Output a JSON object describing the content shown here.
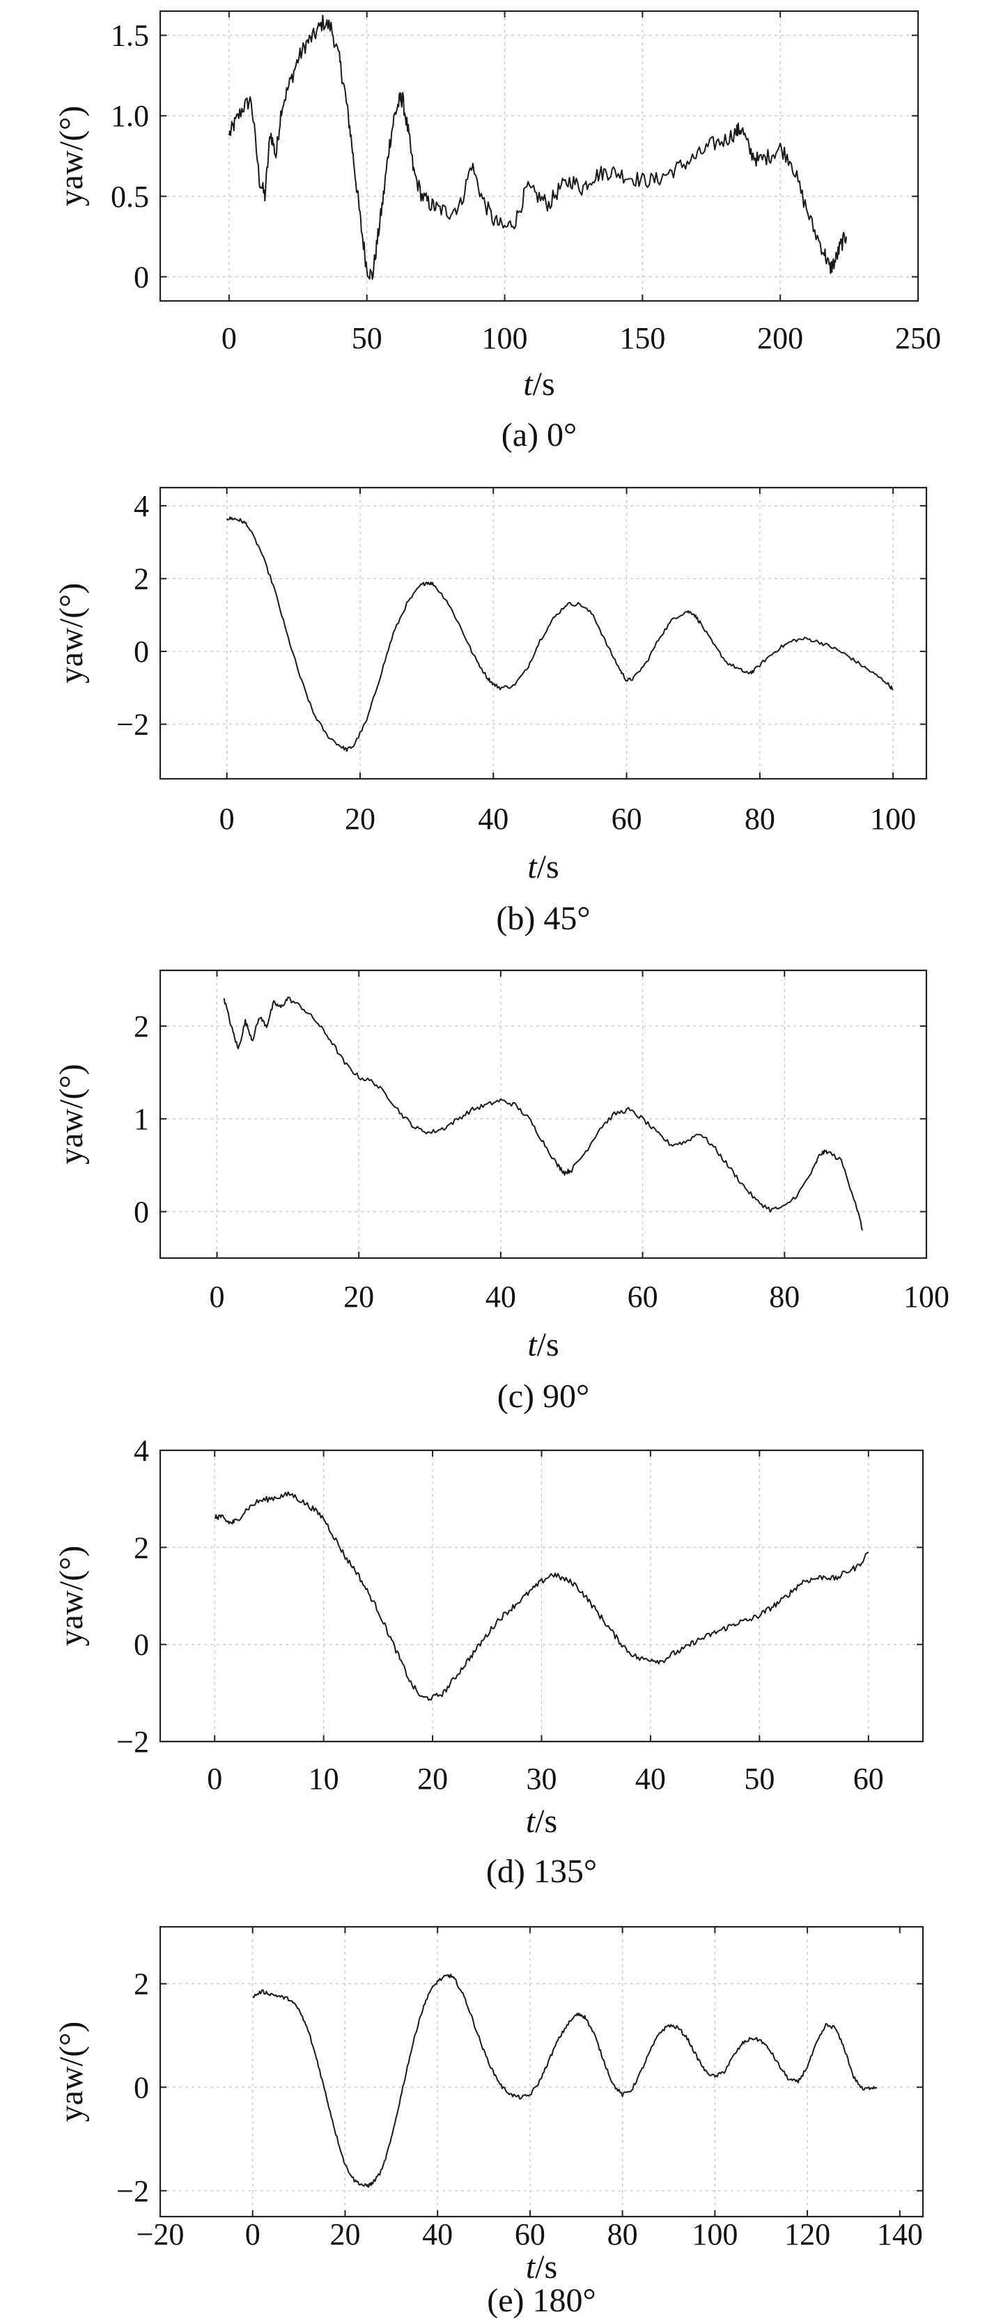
{
  "chart_data": [
    {
      "type": "line",
      "caption": "(a) 0°",
      "xlabel_italic": "t",
      "xlabel_unit": "/s",
      "ylabel": "yaw/(°)",
      "xlim": [
        -25,
        250
      ],
      "ylim": [
        -0.15,
        1.65
      ],
      "xticks": [
        0,
        50,
        100,
        150,
        200,
        250
      ],
      "yticks": [
        0,
        0.5,
        1.0,
        1.5
      ],
      "ytick_labels": [
        "0",
        "0.5",
        "1.0",
        "1.5"
      ],
      "xgrid": [
        0,
        50,
        100,
        150,
        200,
        250
      ],
      "ygrid": [
        0,
        0.5,
        1.0,
        1.5
      ],
      "grid": true,
      "noise": 0.05,
      "series": [
        {
          "x": [
            0,
            2,
            5,
            8,
            11,
            13,
            15,
            17,
            19,
            22,
            25,
            28,
            31,
            34,
            37,
            40,
            42,
            44,
            46,
            48,
            50,
            52,
            54,
            56,
            58,
            60,
            62,
            63,
            65,
            67,
            70,
            73,
            76,
            80,
            84,
            88,
            92,
            96,
            100,
            104,
            108,
            112,
            116,
            120,
            124,
            128,
            132,
            136,
            140,
            145,
            150,
            155,
            160,
            165,
            170,
            175,
            180,
            184,
            186,
            189,
            192,
            196,
            200,
            204,
            208,
            212,
            216,
            218,
            220,
            222,
            224
          ],
          "y": [
            0.88,
            0.95,
            1.05,
            1.1,
            0.6,
            0.5,
            0.9,
            0.75,
            1.05,
            1.2,
            1.35,
            1.45,
            1.5,
            1.58,
            1.55,
            1.35,
            1.15,
            0.9,
            0.6,
            0.3,
            0.05,
            0.0,
            0.25,
            0.5,
            0.8,
            1.0,
            1.1,
            1.1,
            0.9,
            0.65,
            0.5,
            0.45,
            0.42,
            0.4,
            0.45,
            0.7,
            0.48,
            0.35,
            0.3,
            0.35,
            0.55,
            0.5,
            0.45,
            0.55,
            0.6,
            0.55,
            0.62,
            0.65,
            0.65,
            0.62,
            0.6,
            0.6,
            0.65,
            0.7,
            0.75,
            0.82,
            0.85,
            0.9,
            0.92,
            0.78,
            0.72,
            0.75,
            0.8,
            0.72,
            0.5,
            0.3,
            0.15,
            0.05,
            0.1,
            0.2,
            0.25
          ]
        }
      ]
    },
    {
      "type": "line",
      "caption": "(b) 45°",
      "xlabel_italic": "t",
      "xlabel_unit": "/s",
      "ylabel": "yaw/(°)",
      "xlim": [
        -10,
        105
      ],
      "ylim": [
        -3.5,
        4.5
      ],
      "xticks": [
        0,
        20,
        40,
        60,
        80,
        100
      ],
      "yticks": [
        -2,
        0,
        2,
        4
      ],
      "ytick_labels": [
        "−2",
        "0",
        "2",
        "4"
      ],
      "xgrid": [
        0,
        20,
        40,
        60,
        80,
        100
      ],
      "ygrid": [
        -2,
        0,
        2,
        4
      ],
      "grid": true,
      "noise": 0.05,
      "series": [
        {
          "x": [
            0,
            1,
            2,
            3,
            5,
            7,
            9,
            11,
            13,
            15,
            17,
            18,
            19,
            21,
            23,
            25,
            27,
            29,
            30,
            31,
            33,
            35,
            37,
            39,
            40,
            41,
            43,
            45,
            47,
            49,
            51,
            53,
            55,
            57,
            59,
            60,
            61,
            63,
            65,
            67,
            69,
            70,
            71,
            73,
            75,
            77,
            78,
            79,
            81,
            83,
            85,
            87,
            89,
            91,
            93,
            95,
            97,
            99,
            100
          ],
          "y": [
            3.65,
            3.65,
            3.6,
            3.5,
            2.8,
            1.8,
            0.5,
            -0.7,
            -1.7,
            -2.3,
            -2.6,
            -2.7,
            -2.6,
            -1.9,
            -0.7,
            0.5,
            1.3,
            1.8,
            1.9,
            1.85,
            1.4,
            0.7,
            -0.1,
            -0.7,
            -0.9,
            -1.0,
            -0.95,
            -0.5,
            0.3,
            0.9,
            1.3,
            1.3,
            1.0,
            0.2,
            -0.5,
            -0.8,
            -0.75,
            -0.3,
            0.4,
            0.9,
            1.1,
            1.05,
            0.8,
            0.2,
            -0.3,
            -0.5,
            -0.6,
            -0.55,
            -0.2,
            0.1,
            0.3,
            0.35,
            0.25,
            0.1,
            -0.1,
            -0.35,
            -0.6,
            -0.85,
            -1.05
          ]
        }
      ]
    },
    {
      "type": "line",
      "caption": "(c) 90°",
      "xlabel_italic": "t",
      "xlabel_unit": "/s",
      "ylabel": "yaw/(°)",
      "xlim": [
        -8,
        100
      ],
      "ylim": [
        -0.5,
        2.6
      ],
      "xticks": [
        0,
        20,
        40,
        60,
        80,
        100
      ],
      "yticks": [
        0,
        1,
        2
      ],
      "ytick_labels": [
        "0",
        "1",
        "2"
      ],
      "xgrid": [
        0,
        20,
        40,
        60,
        80,
        100
      ],
      "ygrid": [
        0,
        1,
        2
      ],
      "grid": true,
      "noise": 0.025,
      "series": [
        {
          "x": [
            1,
            2,
            3,
            4,
            5,
            6,
            7,
            8,
            9,
            10,
            12,
            14,
            16,
            18,
            20,
            22,
            24,
            26,
            28,
            30,
            32,
            34,
            36,
            38,
            40,
            42,
            44,
            46,
            48,
            49,
            50,
            52,
            54,
            56,
            58,
            60,
            62,
            64,
            66,
            68,
            70,
            72,
            74,
            76,
            78,
            80,
            82,
            84,
            85,
            86,
            88,
            90,
            91
          ],
          "y": [
            2.3,
            2.0,
            1.75,
            2.05,
            1.85,
            2.1,
            2.0,
            2.25,
            2.2,
            2.3,
            2.2,
            2.05,
            1.85,
            1.6,
            1.45,
            1.4,
            1.25,
            1.05,
            0.9,
            0.85,
            0.9,
            1.0,
            1.1,
            1.15,
            1.2,
            1.15,
            1.0,
            0.75,
            0.5,
            0.42,
            0.45,
            0.65,
            0.9,
            1.05,
            1.1,
            1.0,
            0.85,
            0.72,
            0.75,
            0.85,
            0.7,
            0.5,
            0.3,
            0.12,
            0.02,
            0.05,
            0.2,
            0.45,
            0.62,
            0.65,
            0.55,
            0.1,
            -0.2
          ]
        }
      ]
    },
    {
      "type": "line",
      "caption": "(d) 135°",
      "xlabel_italic": "t",
      "xlabel_unit": "/s",
      "ylabel": "yaw/(°)",
      "xlim": [
        -5,
        65
      ],
      "ylim": [
        -2,
        4
      ],
      "xticks": [
        0,
        10,
        20,
        30,
        40,
        50,
        60
      ],
      "yticks": [
        -2,
        0,
        2,
        4
      ],
      "ytick_labels": [
        "−2",
        "0",
        "2",
        "4"
      ],
      "xgrid": [
        0,
        10,
        20,
        30,
        40,
        50,
        60
      ],
      "ygrid": [
        0,
        2
      ],
      "grid": true,
      "noise": 0.06,
      "series": [
        {
          "x": [
            0,
            0.5,
            1,
            1.5,
            2,
            3,
            4,
            5,
            6,
            7,
            8,
            9,
            10,
            11,
            12,
            13,
            14,
            15,
            16,
            17,
            18,
            19,
            20,
            21,
            22,
            23,
            24,
            25,
            26,
            27,
            28,
            29,
            30,
            31,
            32,
            33,
            34,
            35,
            36,
            37,
            38,
            39,
            40,
            41,
            42,
            43,
            44,
            45,
            46,
            47,
            48,
            49,
            50,
            51,
            52,
            53,
            54,
            55,
            56,
            57,
            58,
            59,
            60
          ],
          "y": [
            2.6,
            2.65,
            2.55,
            2.5,
            2.55,
            2.8,
            2.95,
            3.0,
            3.05,
            3.1,
            2.95,
            2.8,
            2.6,
            2.2,
            1.8,
            1.5,
            1.1,
            0.7,
            0.2,
            -0.3,
            -0.8,
            -1.1,
            -1.1,
            -1.0,
            -0.7,
            -0.4,
            -0.1,
            0.2,
            0.5,
            0.7,
            0.9,
            1.1,
            1.3,
            1.45,
            1.35,
            1.25,
            1.0,
            0.7,
            0.4,
            0.1,
            -0.15,
            -0.3,
            -0.3,
            -0.35,
            -0.2,
            -0.1,
            0.05,
            0.15,
            0.25,
            0.35,
            0.45,
            0.5,
            0.6,
            0.75,
            0.9,
            1.1,
            1.3,
            1.35,
            1.4,
            1.35,
            1.5,
            1.6,
            1.9
          ]
        }
      ]
    },
    {
      "type": "line",
      "caption": "(e) 180°",
      "xlabel_italic": "t",
      "xlabel_unit": "/s",
      "ylabel": "yaw/(°)",
      "xlim": [
        -20,
        145
      ],
      "ylim": [
        -2.5,
        3.1
      ],
      "xticks": [
        -20,
        0,
        20,
        40,
        60,
        80,
        100,
        120,
        140
      ],
      "yticks": [
        -2,
        0,
        2
      ],
      "ytick_labels": [
        "−2",
        "0",
        "2"
      ],
      "xgrid": [
        0,
        20,
        40,
        60,
        80,
        100,
        120
      ],
      "ygrid": [
        -2,
        0,
        2
      ],
      "grid": true,
      "noise": 0.035,
      "series": [
        {
          "x": [
            0,
            2,
            4,
            6,
            8,
            10,
            12,
            14,
            16,
            18,
            20,
            22,
            24,
            25,
            26,
            28,
            30,
            32,
            34,
            36,
            38,
            40,
            42,
            43,
            44,
            46,
            48,
            50,
            52,
            54,
            56,
            58,
            60,
            62,
            64,
            66,
            68,
            70,
            71,
            72,
            74,
            76,
            78,
            80,
            82,
            84,
            86,
            88,
            90,
            92,
            94,
            96,
            98,
            100,
            102,
            104,
            106,
            108,
            110,
            112,
            114,
            116,
            118,
            120,
            122,
            124,
            126,
            128,
            130,
            132,
            134,
            135
          ],
          "y": [
            1.75,
            1.85,
            1.8,
            1.75,
            1.7,
            1.5,
            1.1,
            0.5,
            -0.2,
            -0.9,
            -1.5,
            -1.8,
            -1.9,
            -1.9,
            -1.85,
            -1.6,
            -1.0,
            -0.2,
            0.6,
            1.3,
            1.8,
            2.05,
            2.15,
            2.15,
            2.05,
            1.7,
            1.2,
            0.7,
            0.3,
            0.0,
            -0.15,
            -0.2,
            -0.15,
            0.1,
            0.5,
            0.9,
            1.2,
            1.4,
            1.4,
            1.35,
            1.0,
            0.5,
            0.05,
            -0.15,
            -0.05,
            0.3,
            0.7,
            1.05,
            1.2,
            1.15,
            0.95,
            0.6,
            0.3,
            0.2,
            0.3,
            0.6,
            0.85,
            0.95,
            0.9,
            0.7,
            0.4,
            0.15,
            0.1,
            0.4,
            0.85,
            1.2,
            1.15,
            0.75,
            0.2,
            -0.05,
            0.0,
            0.0
          ]
        }
      ]
    }
  ]
}
